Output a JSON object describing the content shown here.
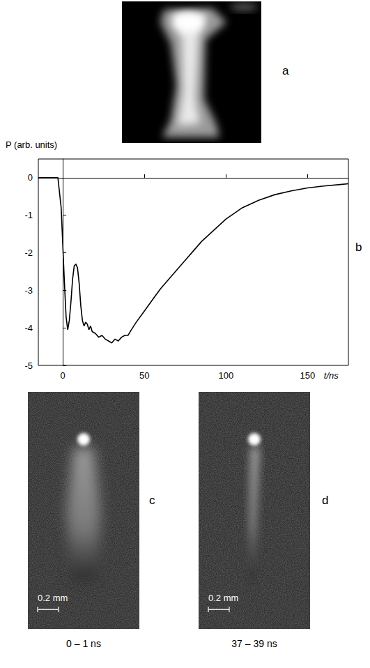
{
  "chart_data": {
    "type": "line",
    "y_label": "P (arb. units)",
    "x_label": "t/ns",
    "x": [
      -15,
      -10,
      -5,
      -3,
      -1,
      1,
      2,
      3,
      4,
      5,
      6,
      7,
      8,
      9,
      10,
      11,
      12,
      13,
      14,
      15,
      16,
      17,
      18,
      20,
      22,
      24,
      26,
      28,
      30,
      32,
      34,
      36,
      38,
      40,
      42,
      45,
      50,
      55,
      60,
      65,
      70,
      75,
      80,
      85,
      90,
      95,
      100,
      110,
      120,
      130,
      140,
      150,
      160,
      170,
      175
    ],
    "values": [
      0,
      0,
      0,
      0,
      -0.8,
      -2.8,
      -3.7,
      -4.05,
      -3.8,
      -3.3,
      -2.7,
      -2.35,
      -2.3,
      -2.4,
      -2.8,
      -3.4,
      -3.8,
      -3.95,
      -3.85,
      -3.9,
      -4.05,
      -3.95,
      -4.1,
      -4.15,
      -4.25,
      -4.2,
      -4.3,
      -4.35,
      -4.4,
      -4.3,
      -4.35,
      -4.25,
      -4.2,
      -4.2,
      -4.05,
      -3.85,
      -3.55,
      -3.25,
      -2.95,
      -2.7,
      -2.45,
      -2.2,
      -1.95,
      -1.7,
      -1.5,
      -1.3,
      -1.1,
      -0.8,
      -0.6,
      -0.45,
      -0.35,
      -0.27,
      -0.22,
      -0.18,
      -0.16
    ],
    "color": "#000000",
    "xlim": [
      -15,
      175
    ],
    "ylim": [
      -5,
      0.5
    ],
    "xticks": [
      0,
      50,
      100,
      150
    ],
    "yticks": [
      -5,
      -4,
      -3,
      -2,
      -1,
      0
    ],
    "hline": 0,
    "grid": false
  },
  "panels": [
    {
      "letter": "a"
    },
    {
      "letter": "b"
    },
    {
      "letter": "c",
      "scale_bar": "0.2 mm",
      "caption": "0 – 1 ns"
    },
    {
      "letter": "d",
      "scale_bar": "0.2 mm",
      "caption": "37 – 39 ns"
    }
  ]
}
